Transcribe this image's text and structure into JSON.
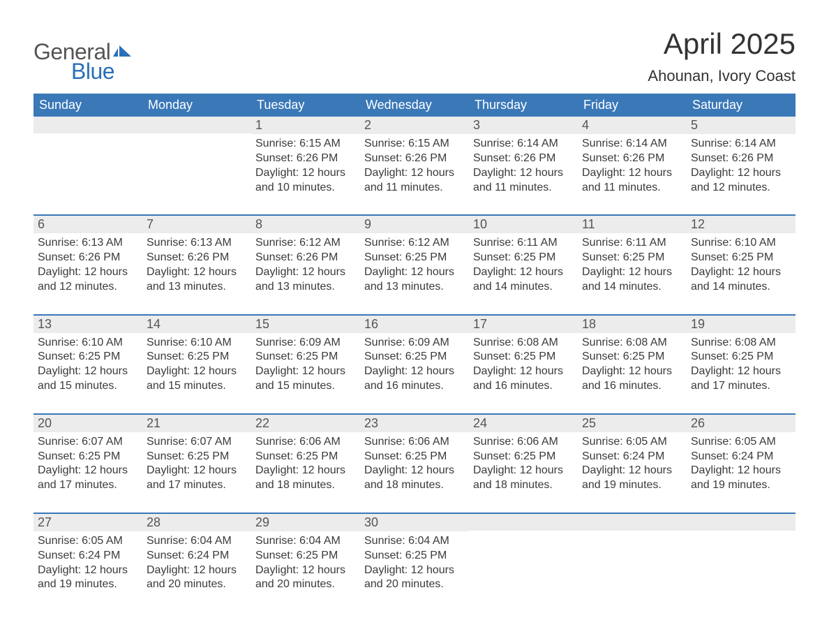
{
  "logo": {
    "general": "General",
    "blue": "Blue",
    "flag_color": "#2a70b8"
  },
  "title": "April 2025",
  "location": "Ahounan, Ivory Coast",
  "colors": {
    "header_bg": "#3a78b8",
    "header_text": "#ffffff",
    "daynum_bg": "#ececec",
    "text": "#333333",
    "week_border": "#3a78b8"
  },
  "weekdays": [
    "Sunday",
    "Monday",
    "Tuesday",
    "Wednesday",
    "Thursday",
    "Friday",
    "Saturday"
  ],
  "weeks": [
    [
      {
        "n": "",
        "sunrise": "",
        "sunset": "",
        "daylight": ""
      },
      {
        "n": "",
        "sunrise": "",
        "sunset": "",
        "daylight": ""
      },
      {
        "n": "1",
        "sunrise": "Sunrise: 6:15 AM",
        "sunset": "Sunset: 6:26 PM",
        "daylight": "Daylight: 12 hours and 10 minutes."
      },
      {
        "n": "2",
        "sunrise": "Sunrise: 6:15 AM",
        "sunset": "Sunset: 6:26 PM",
        "daylight": "Daylight: 12 hours and 11 minutes."
      },
      {
        "n": "3",
        "sunrise": "Sunrise: 6:14 AM",
        "sunset": "Sunset: 6:26 PM",
        "daylight": "Daylight: 12 hours and 11 minutes."
      },
      {
        "n": "4",
        "sunrise": "Sunrise: 6:14 AM",
        "sunset": "Sunset: 6:26 PM",
        "daylight": "Daylight: 12 hours and 11 minutes."
      },
      {
        "n": "5",
        "sunrise": "Sunrise: 6:14 AM",
        "sunset": "Sunset: 6:26 PM",
        "daylight": "Daylight: 12 hours and 12 minutes."
      }
    ],
    [
      {
        "n": "6",
        "sunrise": "Sunrise: 6:13 AM",
        "sunset": "Sunset: 6:26 PM",
        "daylight": "Daylight: 12 hours and 12 minutes."
      },
      {
        "n": "7",
        "sunrise": "Sunrise: 6:13 AM",
        "sunset": "Sunset: 6:26 PM",
        "daylight": "Daylight: 12 hours and 13 minutes."
      },
      {
        "n": "8",
        "sunrise": "Sunrise: 6:12 AM",
        "sunset": "Sunset: 6:26 PM",
        "daylight": "Daylight: 12 hours and 13 minutes."
      },
      {
        "n": "9",
        "sunrise": "Sunrise: 6:12 AM",
        "sunset": "Sunset: 6:25 PM",
        "daylight": "Daylight: 12 hours and 13 minutes."
      },
      {
        "n": "10",
        "sunrise": "Sunrise: 6:11 AM",
        "sunset": "Sunset: 6:25 PM",
        "daylight": "Daylight: 12 hours and 14 minutes."
      },
      {
        "n": "11",
        "sunrise": "Sunrise: 6:11 AM",
        "sunset": "Sunset: 6:25 PM",
        "daylight": "Daylight: 12 hours and 14 minutes."
      },
      {
        "n": "12",
        "sunrise": "Sunrise: 6:10 AM",
        "sunset": "Sunset: 6:25 PM",
        "daylight": "Daylight: 12 hours and 14 minutes."
      }
    ],
    [
      {
        "n": "13",
        "sunrise": "Sunrise: 6:10 AM",
        "sunset": "Sunset: 6:25 PM",
        "daylight": "Daylight: 12 hours and 15 minutes."
      },
      {
        "n": "14",
        "sunrise": "Sunrise: 6:10 AM",
        "sunset": "Sunset: 6:25 PM",
        "daylight": "Daylight: 12 hours and 15 minutes."
      },
      {
        "n": "15",
        "sunrise": "Sunrise: 6:09 AM",
        "sunset": "Sunset: 6:25 PM",
        "daylight": "Daylight: 12 hours and 15 minutes."
      },
      {
        "n": "16",
        "sunrise": "Sunrise: 6:09 AM",
        "sunset": "Sunset: 6:25 PM",
        "daylight": "Daylight: 12 hours and 16 minutes."
      },
      {
        "n": "17",
        "sunrise": "Sunrise: 6:08 AM",
        "sunset": "Sunset: 6:25 PM",
        "daylight": "Daylight: 12 hours and 16 minutes."
      },
      {
        "n": "18",
        "sunrise": "Sunrise: 6:08 AM",
        "sunset": "Sunset: 6:25 PM",
        "daylight": "Daylight: 12 hours and 16 minutes."
      },
      {
        "n": "19",
        "sunrise": "Sunrise: 6:08 AM",
        "sunset": "Sunset: 6:25 PM",
        "daylight": "Daylight: 12 hours and 17 minutes."
      }
    ],
    [
      {
        "n": "20",
        "sunrise": "Sunrise: 6:07 AM",
        "sunset": "Sunset: 6:25 PM",
        "daylight": "Daylight: 12 hours and 17 minutes."
      },
      {
        "n": "21",
        "sunrise": "Sunrise: 6:07 AM",
        "sunset": "Sunset: 6:25 PM",
        "daylight": "Daylight: 12 hours and 17 minutes."
      },
      {
        "n": "22",
        "sunrise": "Sunrise: 6:06 AM",
        "sunset": "Sunset: 6:25 PM",
        "daylight": "Daylight: 12 hours and 18 minutes."
      },
      {
        "n": "23",
        "sunrise": "Sunrise: 6:06 AM",
        "sunset": "Sunset: 6:25 PM",
        "daylight": "Daylight: 12 hours and 18 minutes."
      },
      {
        "n": "24",
        "sunrise": "Sunrise: 6:06 AM",
        "sunset": "Sunset: 6:25 PM",
        "daylight": "Daylight: 12 hours and 18 minutes."
      },
      {
        "n": "25",
        "sunrise": "Sunrise: 6:05 AM",
        "sunset": "Sunset: 6:24 PM",
        "daylight": "Daylight: 12 hours and 19 minutes."
      },
      {
        "n": "26",
        "sunrise": "Sunrise: 6:05 AM",
        "sunset": "Sunset: 6:24 PM",
        "daylight": "Daylight: 12 hours and 19 minutes."
      }
    ],
    [
      {
        "n": "27",
        "sunrise": "Sunrise: 6:05 AM",
        "sunset": "Sunset: 6:24 PM",
        "daylight": "Daylight: 12 hours and 19 minutes."
      },
      {
        "n": "28",
        "sunrise": "Sunrise: 6:04 AM",
        "sunset": "Sunset: 6:24 PM",
        "daylight": "Daylight: 12 hours and 20 minutes."
      },
      {
        "n": "29",
        "sunrise": "Sunrise: 6:04 AM",
        "sunset": "Sunset: 6:25 PM",
        "daylight": "Daylight: 12 hours and 20 minutes."
      },
      {
        "n": "30",
        "sunrise": "Sunrise: 6:04 AM",
        "sunset": "Sunset: 6:25 PM",
        "daylight": "Daylight: 12 hours and 20 minutes."
      },
      {
        "n": "",
        "sunrise": "",
        "sunset": "",
        "daylight": ""
      },
      {
        "n": "",
        "sunrise": "",
        "sunset": "",
        "daylight": ""
      },
      {
        "n": "",
        "sunrise": "",
        "sunset": "",
        "daylight": ""
      }
    ]
  ]
}
